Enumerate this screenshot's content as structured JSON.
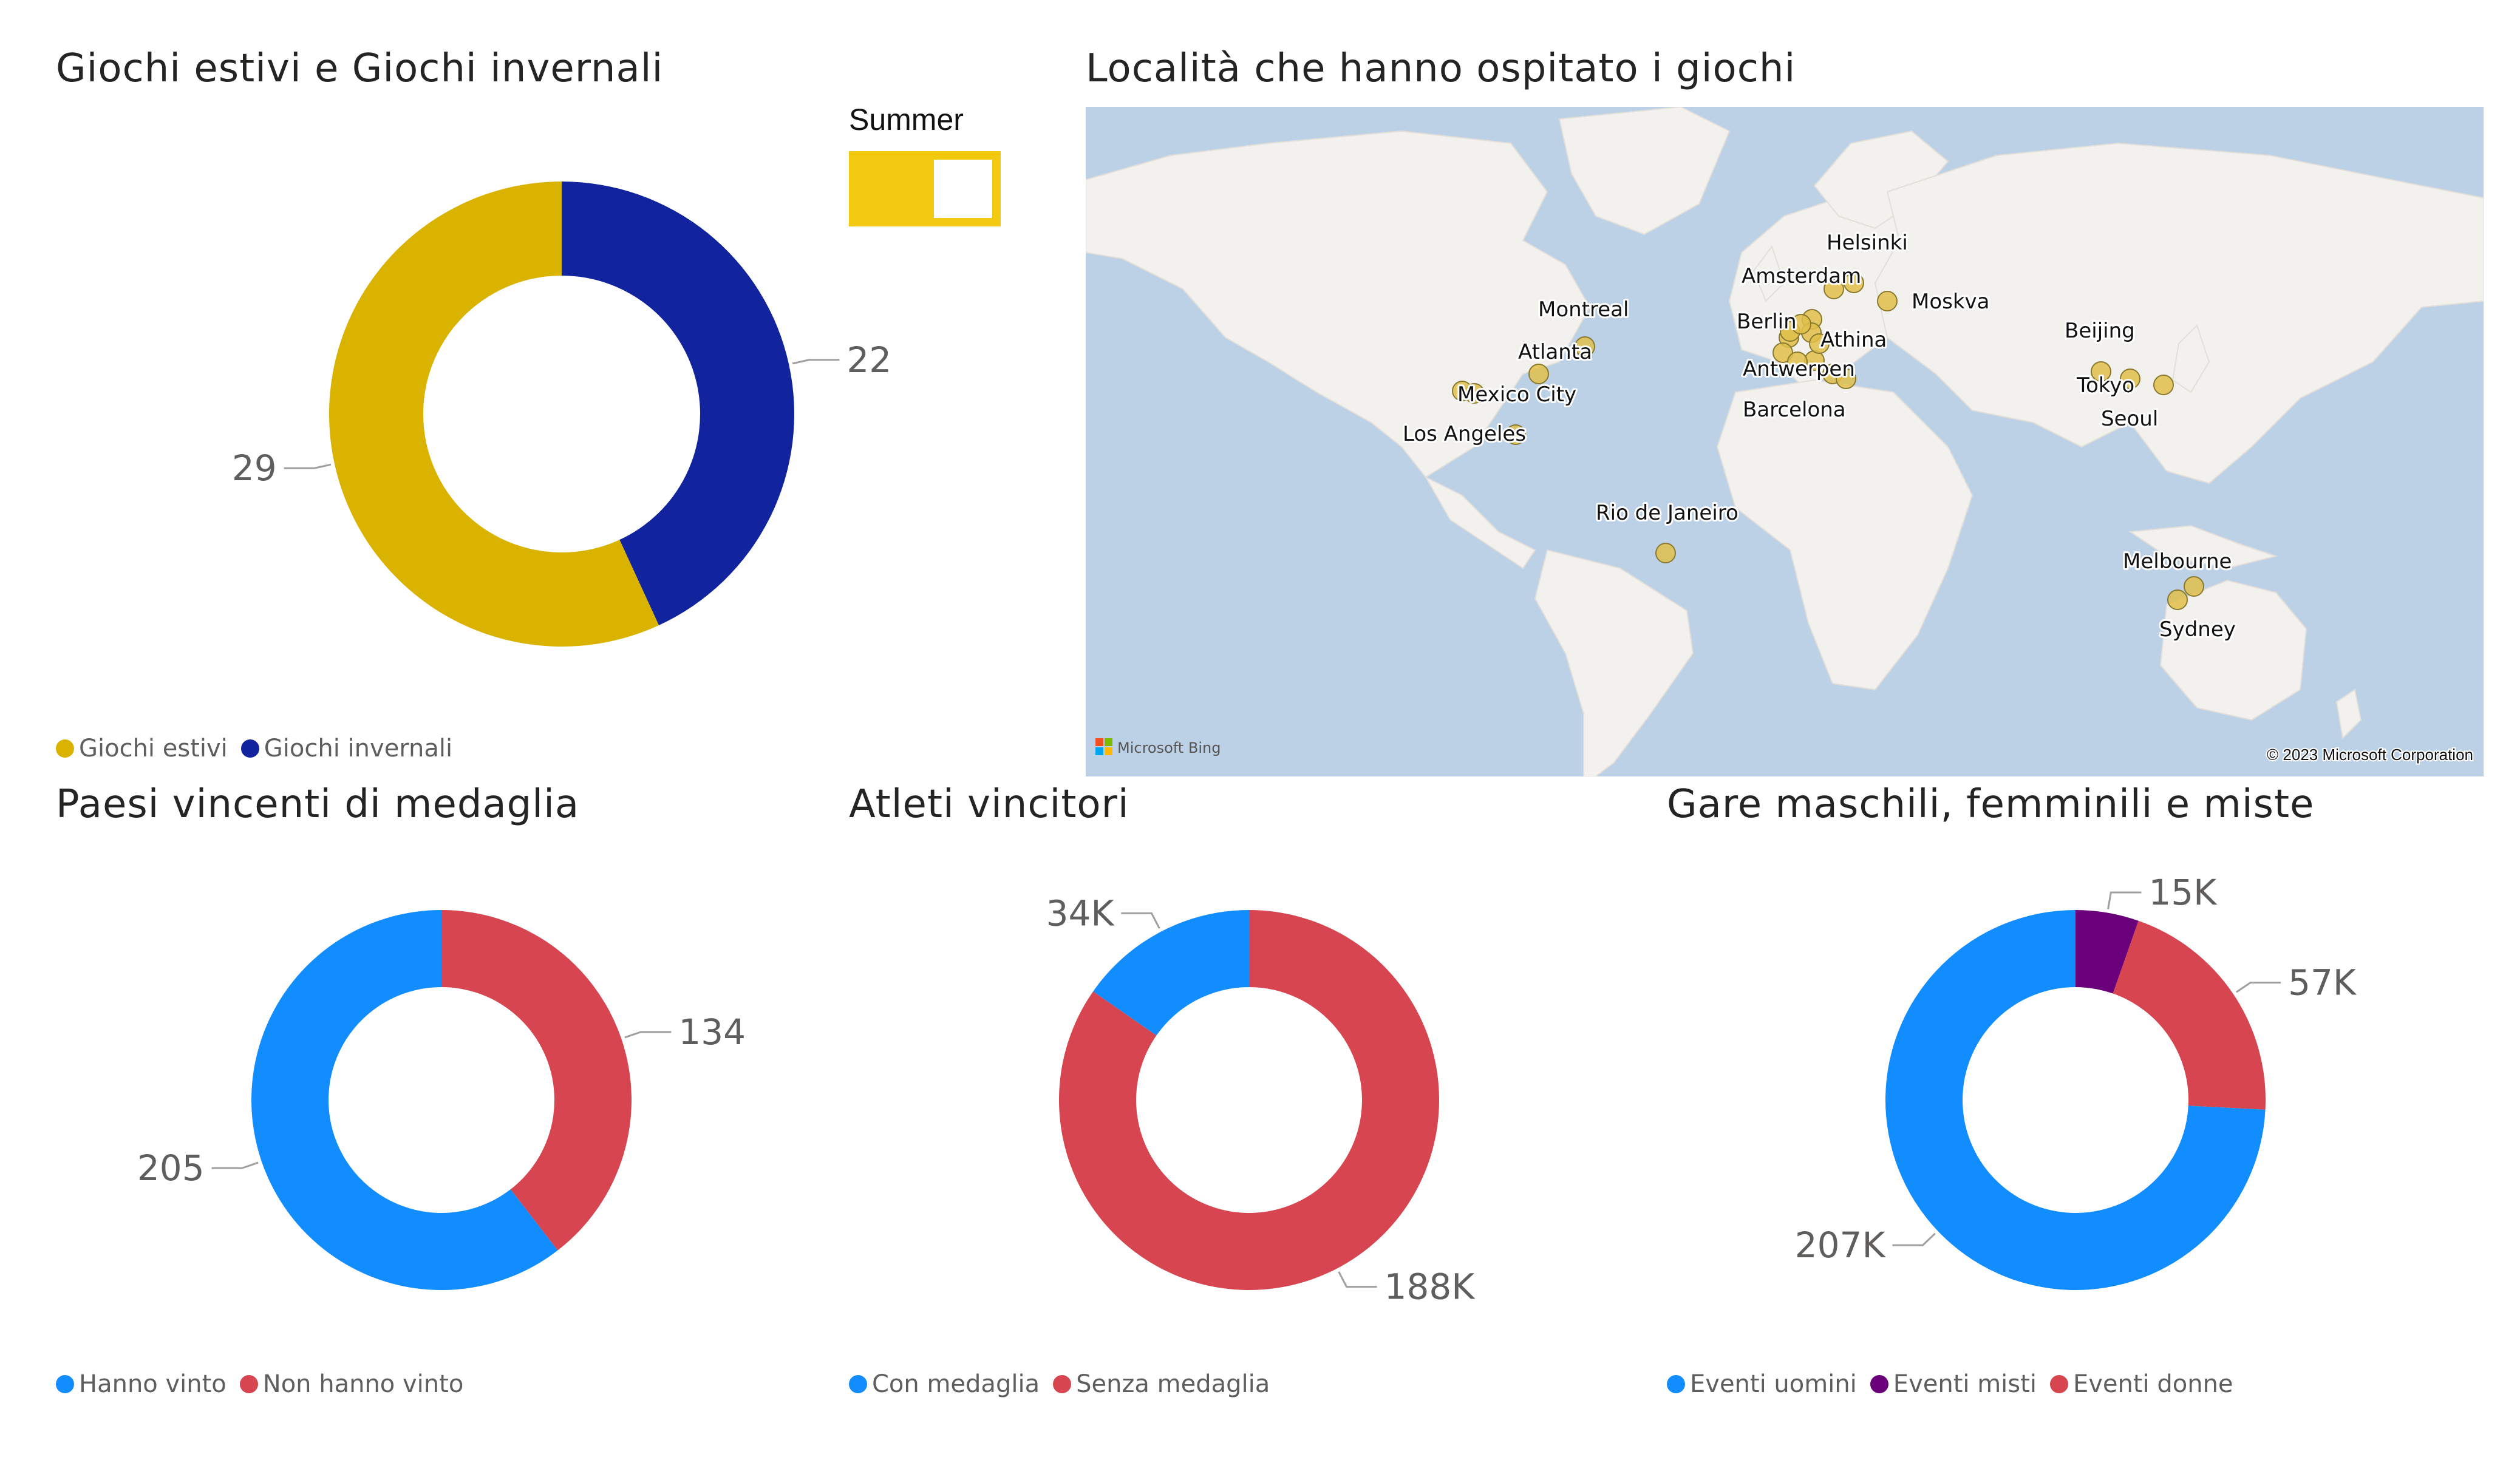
{
  "titles": {
    "seasons": "Giochi estivi e Giochi invernali",
    "map": "Località che hanno ospitato i giochi",
    "countries": "Paesi vincenti di medaglia",
    "athletes": "Atleti vincitori",
    "events": "Gare maschili, femminili e miste"
  },
  "slicer": {
    "title": "Summer",
    "state": "on",
    "color": "#F2C811"
  },
  "chart_data": [
    {
      "id": "seasons",
      "type": "donut",
      "slices": [
        {
          "label": "Giochi invernali",
          "value": 22,
          "display": "22",
          "color": "#12239E"
        },
        {
          "label": "Giochi estivi",
          "value": 29,
          "display": "29",
          "color": "#D9B300"
        }
      ],
      "legend": [
        "Giochi estivi",
        "Giochi invernali"
      ],
      "legend_colors": [
        "#D9B300",
        "#12239E"
      ]
    },
    {
      "id": "countries",
      "type": "donut",
      "slices": [
        {
          "label": "Non hanno vinto",
          "value": 134,
          "display": "134",
          "color": "#D64550"
        },
        {
          "label": "Hanno vinto",
          "value": 205,
          "display": "205",
          "color": "#118DFF"
        }
      ],
      "legend": [
        "Hanno vinto",
        "Non hanno vinto"
      ],
      "legend_colors": [
        "#118DFF",
        "#D64550"
      ]
    },
    {
      "id": "athletes",
      "type": "donut",
      "slices": [
        {
          "label": "Senza medaglia",
          "value": 188000,
          "display": "188K",
          "color": "#D64550"
        },
        {
          "label": "Con medaglia",
          "value": 34000,
          "display": "34K",
          "color": "#118DFF"
        }
      ],
      "legend": [
        "Con medaglia",
        "Senza medaglia"
      ],
      "legend_colors": [
        "#118DFF",
        "#D64550"
      ]
    },
    {
      "id": "events",
      "type": "donut",
      "slices": [
        {
          "label": "Eventi misti",
          "value": 15000,
          "display": "15K",
          "color": "#6B007B"
        },
        {
          "label": "Eventi donne",
          "value": 57000,
          "display": "57K",
          "color": "#D64550"
        },
        {
          "label": "Eventi uomini",
          "value": 207000,
          "display": "207K",
          "color": "#118DFF"
        }
      ],
      "legend": [
        "Eventi uomini",
        "Eventi misti",
        "Eventi donne"
      ],
      "legend_colors": [
        "#118DFF",
        "#6B007B",
        "#D64550"
      ]
    }
  ],
  "map": {
    "cities": [
      "Helsinki",
      "Amsterdam",
      "Moskva",
      "Montreal",
      "Berlin",
      "Athina",
      "Atlanta",
      "Antwerpen",
      "Mexico City",
      "Barcelona",
      "Los Angeles",
      "Beijing",
      "Tokyo",
      "Seoul",
      "Rio de Janeiro",
      "Melbourne",
      "Sydney"
    ],
    "marker_color": "#E0C04A",
    "attribution_logo": "Microsoft Bing",
    "copyright": "© 2023 Microsoft Corporation"
  }
}
